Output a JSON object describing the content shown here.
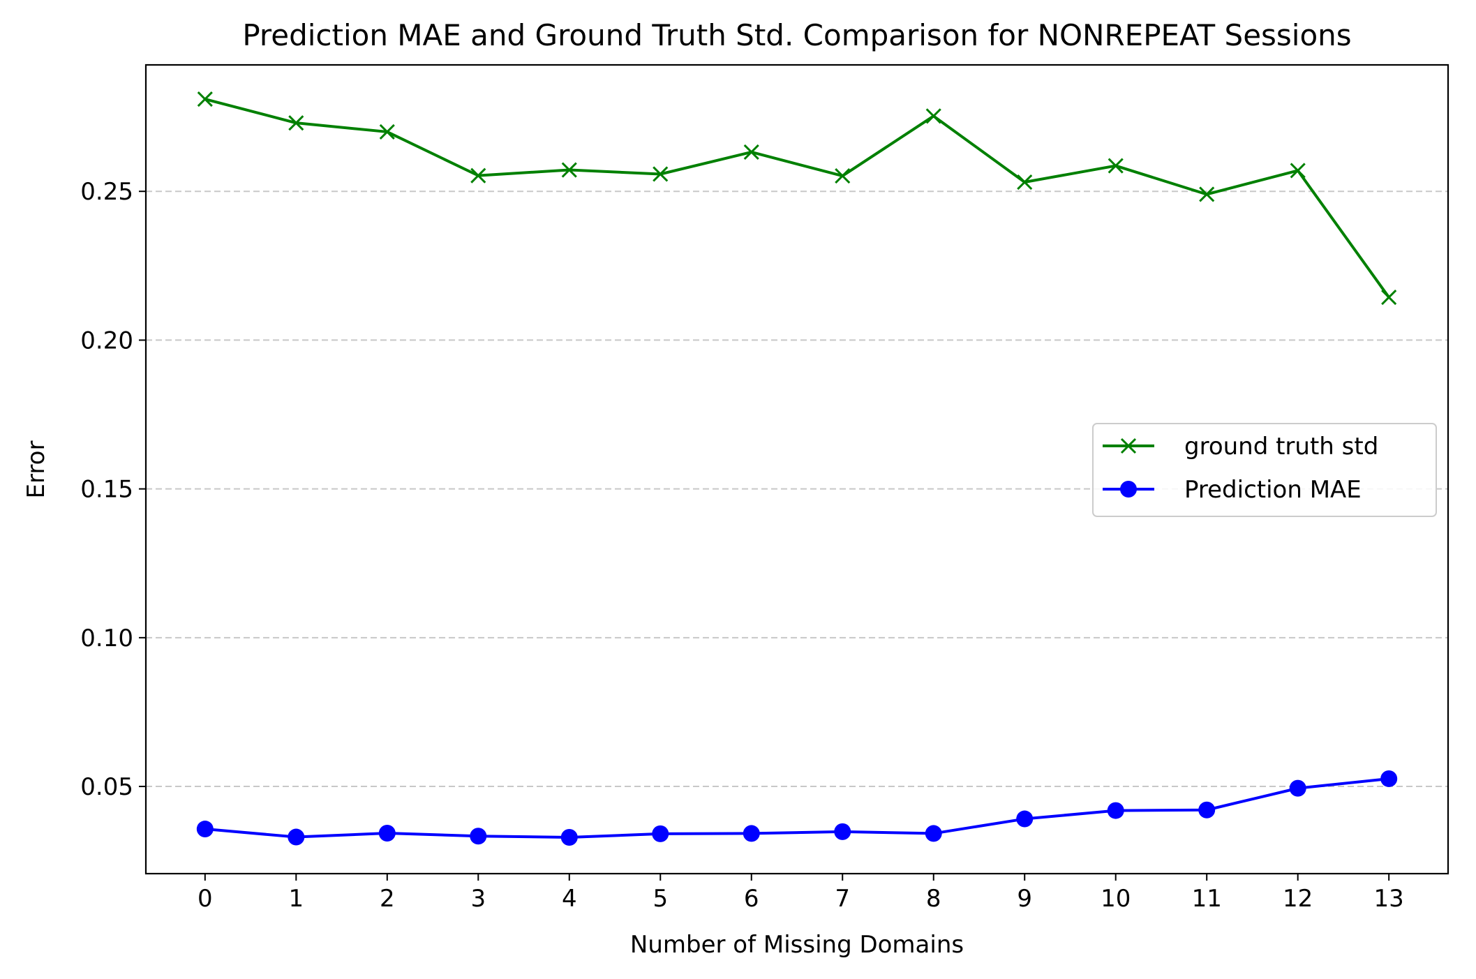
{
  "chart_data": {
    "type": "line",
    "title": "Prediction MAE and Ground Truth Std. Comparison for NONREPEAT Sessions",
    "xlabel": "Number of Missing Domains",
    "ylabel": "Error",
    "x": [
      0,
      1,
      2,
      3,
      4,
      5,
      6,
      7,
      8,
      9,
      10,
      11,
      12,
      13
    ],
    "x_tick_labels": [
      "0",
      "1",
      "2",
      "3",
      "4",
      "5",
      "6",
      "7",
      "8",
      "9",
      "10",
      "11",
      "12",
      "13"
    ],
    "y_ticks": [
      0.05,
      0.1,
      0.15,
      0.2,
      0.25
    ],
    "y_tick_labels": [
      "0.05",
      "0.10",
      "0.15",
      "0.20",
      "0.25"
    ],
    "xlim": [
      -0.65,
      13.65
    ],
    "ylim": [
      0.0207,
      0.2925
    ],
    "grid": "y-dashed",
    "legend_position": "center-right",
    "series": [
      {
        "name": "ground truth std",
        "color": "#008000",
        "marker": "x",
        "values": [
          0.281,
          0.273,
          0.27,
          0.2553,
          0.2572,
          0.2558,
          0.2632,
          0.2552,
          0.2753,
          0.2531,
          0.2586,
          0.249,
          0.257,
          0.2144
        ]
      },
      {
        "name": "Prediction MAE",
        "color": "#0000ff",
        "marker": "o",
        "values": [
          0.0357,
          0.033,
          0.0343,
          0.0333,
          0.0329,
          0.0341,
          0.0342,
          0.0348,
          0.0342,
          0.0391,
          0.0419,
          0.0421,
          0.0494,
          0.0526
        ]
      }
    ]
  }
}
